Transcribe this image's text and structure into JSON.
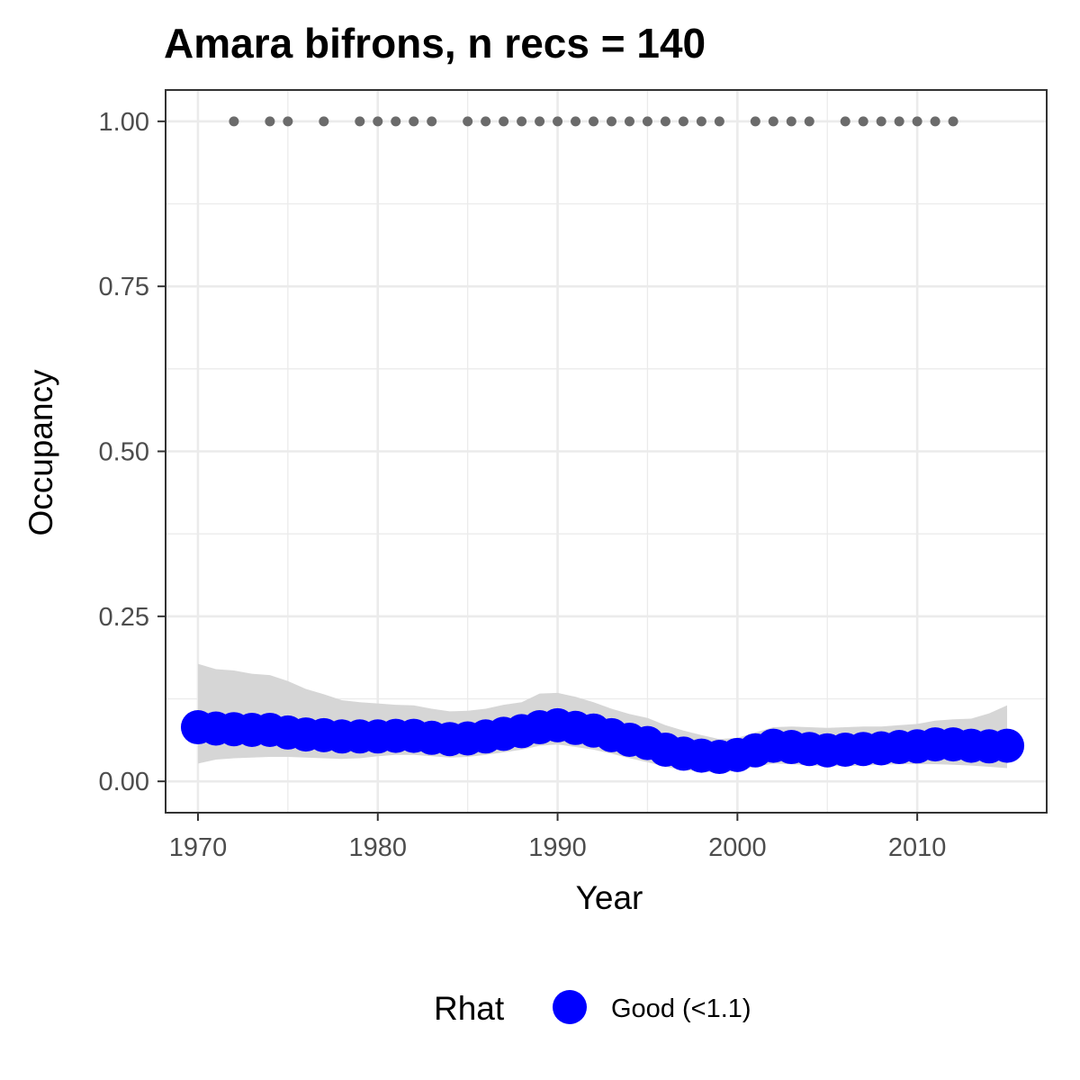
{
  "chart_data": {
    "type": "line",
    "title": "Amara bifrons, n recs = 140",
    "xlabel": "Year",
    "ylabel": "Occupancy",
    "xlim": [
      1968.2,
      2017.2
    ],
    "ylim": [
      -0.0475,
      1.0475
    ],
    "x_ticks": [
      1970,
      1980,
      1990,
      2000,
      2010
    ],
    "x_tick_labels": [
      "1970",
      "1980",
      "1990",
      "2000",
      "2010"
    ],
    "y_ticks": [
      0,
      0.25,
      0.5,
      0.75,
      1.0
    ],
    "y_tick_labels": [
      "0.00",
      "0.25",
      "0.50",
      "0.75",
      "1.00"
    ],
    "grid": true,
    "legend": {
      "title": "Rhat",
      "position": "bottom",
      "entries": [
        {
          "label": "Good (<1.1)",
          "color": "#0000ff"
        }
      ]
    },
    "series": [
      {
        "name": "Good (<1.1)",
        "color": "#0000ff",
        "x": [
          1970,
          1971,
          1972,
          1973,
          1974,
          1975,
          1976,
          1977,
          1978,
          1979,
          1980,
          1981,
          1982,
          1983,
          1984,
          1985,
          1986,
          1987,
          1988,
          1989,
          1990,
          1991,
          1992,
          1993,
          1994,
          1995,
          1996,
          1997,
          1998,
          1999,
          2000,
          2001,
          2002,
          2003,
          2004,
          2005,
          2006,
          2007,
          2008,
          2009,
          2010,
          2011,
          2012,
          2013,
          2014,
          2015
        ],
        "y": [
          0.082,
          0.08,
          0.079,
          0.078,
          0.078,
          0.074,
          0.071,
          0.07,
          0.068,
          0.068,
          0.068,
          0.069,
          0.069,
          0.066,
          0.064,
          0.065,
          0.068,
          0.072,
          0.076,
          0.082,
          0.085,
          0.081,
          0.077,
          0.07,
          0.063,
          0.058,
          0.048,
          0.042,
          0.039,
          0.037,
          0.04,
          0.047,
          0.054,
          0.052,
          0.049,
          0.047,
          0.048,
          0.049,
          0.05,
          0.052,
          0.053,
          0.056,
          0.056,
          0.054,
          0.053,
          0.054
        ],
        "lower": [
          0.027,
          0.033,
          0.035,
          0.036,
          0.037,
          0.037,
          0.036,
          0.035,
          0.034,
          0.035,
          0.038,
          0.04,
          0.04,
          0.038,
          0.036,
          0.037,
          0.04,
          0.044,
          0.048,
          0.054,
          0.056,
          0.052,
          0.048,
          0.042,
          0.035,
          0.029,
          0.022,
          0.017,
          0.015,
          0.013,
          0.016,
          0.022,
          0.027,
          0.026,
          0.024,
          0.023,
          0.023,
          0.024,
          0.025,
          0.026,
          0.026,
          0.026,
          0.025,
          0.024,
          0.022,
          0.02
        ],
        "upper": [
          0.178,
          0.17,
          0.168,
          0.163,
          0.161,
          0.152,
          0.14,
          0.132,
          0.123,
          0.12,
          0.118,
          0.116,
          0.115,
          0.11,
          0.106,
          0.107,
          0.11,
          0.116,
          0.12,
          0.133,
          0.134,
          0.128,
          0.12,
          0.11,
          0.102,
          0.096,
          0.085,
          0.077,
          0.07,
          0.064,
          0.066,
          0.074,
          0.082,
          0.083,
          0.082,
          0.081,
          0.082,
          0.083,
          0.083,
          0.085,
          0.087,
          0.092,
          0.094,
          0.095,
          0.103,
          0.115
        ]
      }
    ],
    "record_years": [
      1972,
      1974,
      1975,
      1977,
      1979,
      1980,
      1981,
      1982,
      1983,
      1985,
      1986,
      1987,
      1988,
      1989,
      1990,
      1991,
      1992,
      1993,
      1994,
      1995,
      1996,
      1997,
      1998,
      1999,
      2001,
      2002,
      2003,
      2004,
      2006,
      2007,
      2008,
      2009,
      2010,
      2011,
      2012
    ],
    "record_y": 1.0,
    "colors": {
      "ribbon": "#d6d6d6",
      "records": "#6b6b6b",
      "grid": "#ebebeb",
      "panel_border": "#333333"
    }
  }
}
